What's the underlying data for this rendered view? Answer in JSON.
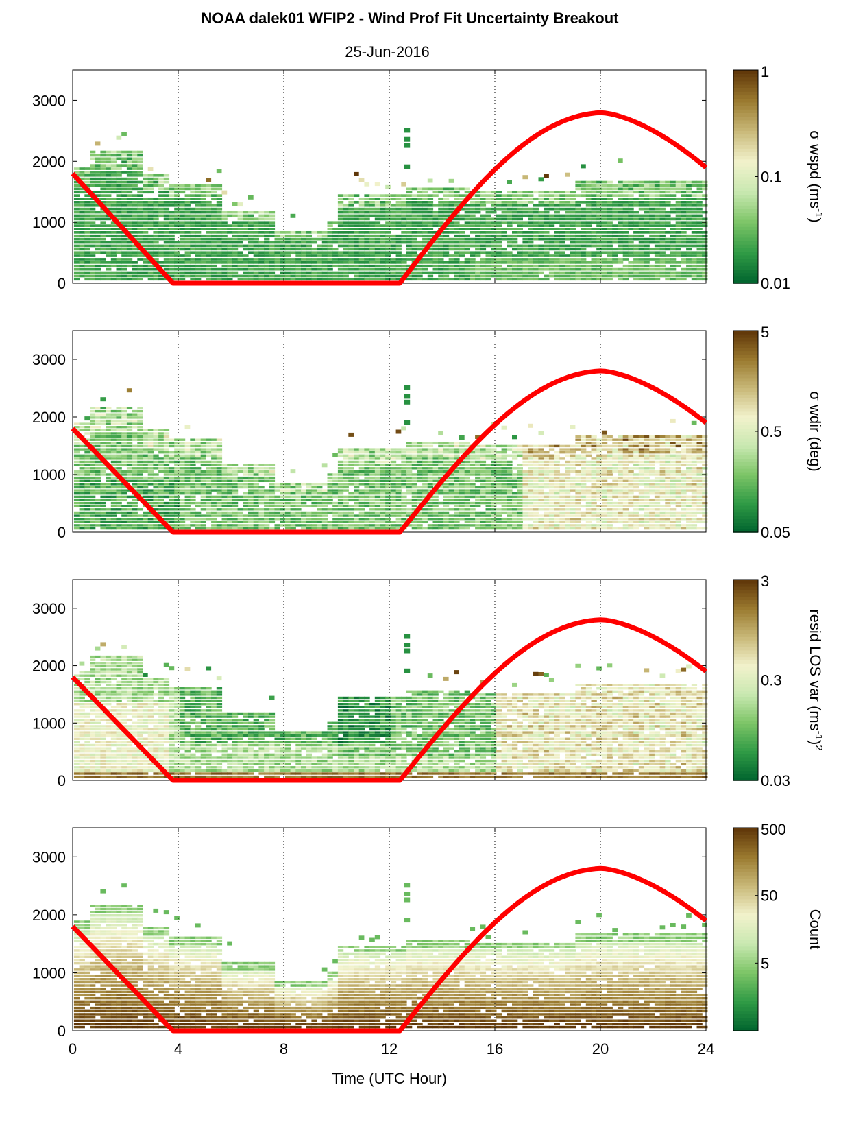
{
  "figure": {
    "title": "NOAA dalek01 WFIP2 - Wind Prof Fit Uncertainty Breakout",
    "subtitle": "25-Jun-2016",
    "xlabel": "Time (UTC Hour)"
  },
  "chart_data": [
    {
      "type": "heatmap",
      "name": "wspd",
      "x_range": [
        0,
        24
      ],
      "y_range": [
        0,
        3500
      ],
      "x_ticks": [
        0,
        4,
        8,
        12,
        16,
        20,
        24
      ],
      "y_ticks": [
        0,
        1000,
        2000,
        3000
      ],
      "grid": "vertical dotted lines at 4, 8, 12, 16, 20",
      "colorbar": {
        "label": "σ wspd (ms",
        "label_sup": "-1",
        "label_end": ")",
        "scale": "log",
        "range": [
          0.01,
          1
        ],
        "ticks": [
          "0.01",
          "0.1",
          "1"
        ]
      },
      "colormap": [
        "#00632e",
        "#2f9a45",
        "#7cc466",
        "#c8e8b0",
        "#f2f2cc",
        "#c9b979",
        "#9a7a2f",
        "#5e3508"
      ],
      "overlay_line": {
        "color": "#ff0000",
        "x": [
          0,
          3.8,
          12.4,
          16,
          20,
          24
        ],
        "y": [
          1800,
          0,
          0,
          1800,
          2800,
          1900
        ]
      }
    },
    {
      "type": "heatmap",
      "name": "wdir",
      "x_range": [
        0,
        24
      ],
      "y_range": [
        0,
        3500
      ],
      "x_ticks": [
        0,
        4,
        8,
        12,
        16,
        20,
        24
      ],
      "y_ticks": [
        0,
        1000,
        2000,
        3000
      ],
      "colorbar": {
        "label": "σ wdir (deg)",
        "scale": "log",
        "range": [
          0.05,
          5
        ],
        "ticks": [
          "0.05",
          "0.5",
          "5"
        ]
      },
      "overlay_line": {
        "color": "#ff0000",
        "x": [
          0,
          3.8,
          12.4,
          16,
          20,
          24
        ],
        "y": [
          1800,
          0,
          0,
          1800,
          2800,
          1900
        ]
      }
    },
    {
      "type": "heatmap",
      "name": "resid",
      "x_range": [
        0,
        24
      ],
      "y_range": [
        0,
        3500
      ],
      "x_ticks": [
        0,
        4,
        8,
        12,
        16,
        20,
        24
      ],
      "y_ticks": [
        0,
        1000,
        2000,
        3000
      ],
      "colorbar": {
        "label": "resid LOS var (ms",
        "label_sup": "-1",
        "label_end": ")",
        "label_sup2": "2",
        "scale": "log",
        "range": [
          0.03,
          3
        ],
        "ticks": [
          "0.03",
          "0.3",
          "3"
        ]
      },
      "overlay_line": {
        "color": "#ff0000",
        "x": [
          0,
          3.8,
          12.4,
          16,
          20,
          24
        ],
        "y": [
          1800,
          0,
          0,
          1800,
          2800,
          1900
        ]
      }
    },
    {
      "type": "heatmap",
      "name": "count",
      "x_range": [
        0,
        24
      ],
      "y_range": [
        0,
        3500
      ],
      "x_ticks": [
        0,
        4,
        8,
        12,
        16,
        20,
        24
      ],
      "y_ticks": [
        0,
        1000,
        2000,
        3000
      ],
      "colorbar": {
        "label": "Count",
        "scale": "log",
        "range": [
          0.5,
          500
        ],
        "ticks": [
          "5",
          "50",
          "500"
        ]
      },
      "overlay_line": {
        "color": "#ff0000",
        "x": [
          0,
          3.8,
          12.4,
          16,
          20,
          24
        ],
        "y": [
          1800,
          0,
          0,
          1800,
          2800,
          1900
        ]
      }
    }
  ]
}
